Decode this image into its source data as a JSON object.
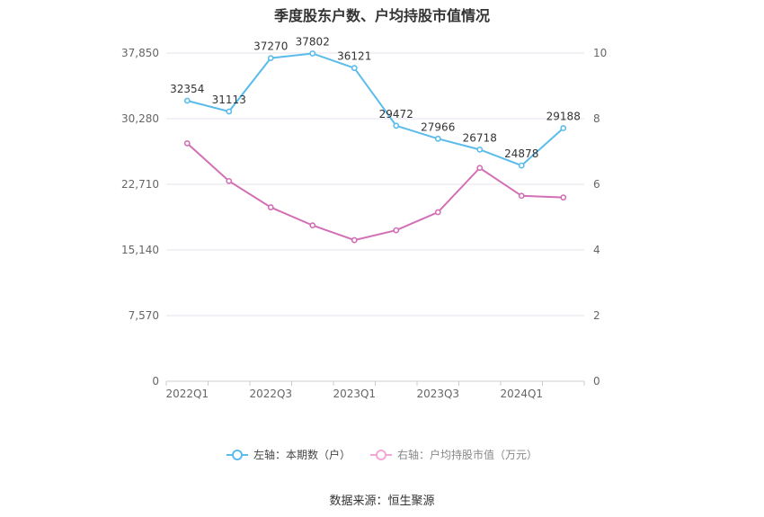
{
  "chart_data": {
    "type": "line",
    "title": "季度股东户数、户均持股市值情况",
    "categories": [
      "2022Q1",
      "2022Q2",
      "2022Q3",
      "2022Q4",
      "2023Q1",
      "2023Q2",
      "2023Q3",
      "2023Q4",
      "2024Q1",
      "2024Q2"
    ],
    "x_tick_labels": [
      "2022Q1",
      "",
      "2022Q3",
      "",
      "2023Q1",
      "",
      "2023Q3",
      "",
      "2024Q1",
      ""
    ],
    "left_axis": {
      "ticks": [
        "0",
        "7,570",
        "15,140",
        "22,710",
        "30,280",
        "37,850"
      ],
      "ylim": [
        0,
        37850
      ]
    },
    "right_axis": {
      "ticks": [
        "0",
        "2",
        "4",
        "6",
        "8",
        "10"
      ],
      "ylim": [
        0,
        10
      ]
    },
    "series": [
      {
        "name": "左轴：本期数（户）",
        "axis": "left",
        "color": "#5bbcec",
        "values": [
          32354,
          31113,
          37270,
          37802,
          36121,
          29472,
          27966,
          26718,
          24878,
          29188
        ],
        "labels": [
          "32354",
          "31113",
          "37270",
          "37802",
          "36121",
          "29472",
          "27966",
          "26718",
          "24878",
          "29188"
        ]
      },
      {
        "name": "右轴：户均持股市值（万元）",
        "axis": "right",
        "color": "#d36fb5",
        "values": [
          7.25,
          6.1,
          5.3,
          4.75,
          4.3,
          4.6,
          5.15,
          6.5,
          5.65,
          5.6
        ]
      }
    ],
    "grid": true,
    "legend_position": "bottom",
    "source": "数据来源：恒生聚源"
  }
}
